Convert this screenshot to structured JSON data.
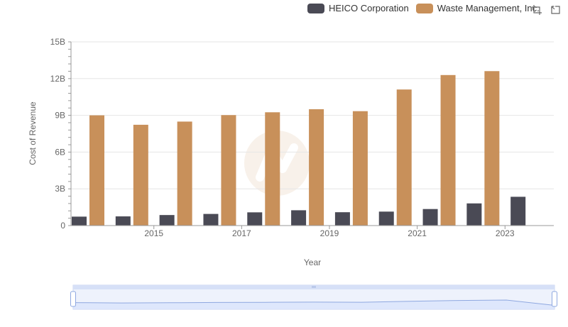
{
  "colors": {
    "heico": "#4a4a55",
    "waste": "#c8905a",
    "grid": "#e6e6e6",
    "axis": "#666666",
    "zoom_fill": "#d9e4fb",
    "zoom_line": "#8fa8e0",
    "zoom_handle_border": "#8fa8e0"
  },
  "legend": {
    "items": [
      {
        "label": "HEICO Corporation",
        "color": "#4a4a55"
      },
      {
        "label": "Waste Management, Inc.",
        "color": "#c8905a"
      }
    ]
  },
  "toolbar": {
    "icons": [
      "zoom-area-icon",
      "reset-zoom-icon"
    ]
  },
  "chart_data": {
    "type": "bar",
    "categories": [
      "2014",
      "2015",
      "2016",
      "2017",
      "2018",
      "2019",
      "2020",
      "2021",
      "2022",
      "2023",
      "2024"
    ],
    "x_tick_labels": [
      "2015",
      "2017",
      "2019",
      "2021",
      "2023"
    ],
    "series": [
      {
        "name": "HEICO Corporation",
        "values": [
          0.73,
          0.75,
          0.86,
          0.95,
          1.08,
          1.25,
          1.09,
          1.14,
          1.35,
          1.81,
          2.35
        ]
      },
      {
        "name": "Waste Management, Inc.",
        "values": [
          9.0,
          8.23,
          8.49,
          9.02,
          9.25,
          9.5,
          9.34,
          11.11,
          12.29,
          12.61,
          null
        ]
      }
    ],
    "y_ticks": [
      {
        "value": 0,
        "label": "0"
      },
      {
        "value": 3,
        "label": "3B"
      },
      {
        "value": 6,
        "label": "6B"
      },
      {
        "value": 9,
        "label": "9B"
      },
      {
        "value": 12,
        "label": "12B"
      },
      {
        "value": 15,
        "label": "15B"
      }
    ],
    "ylim": [
      0,
      15
    ],
    "xlabel": "Year",
    "ylabel": "Cost of Revenue",
    "grid": true,
    "legend_position": "top-right"
  }
}
